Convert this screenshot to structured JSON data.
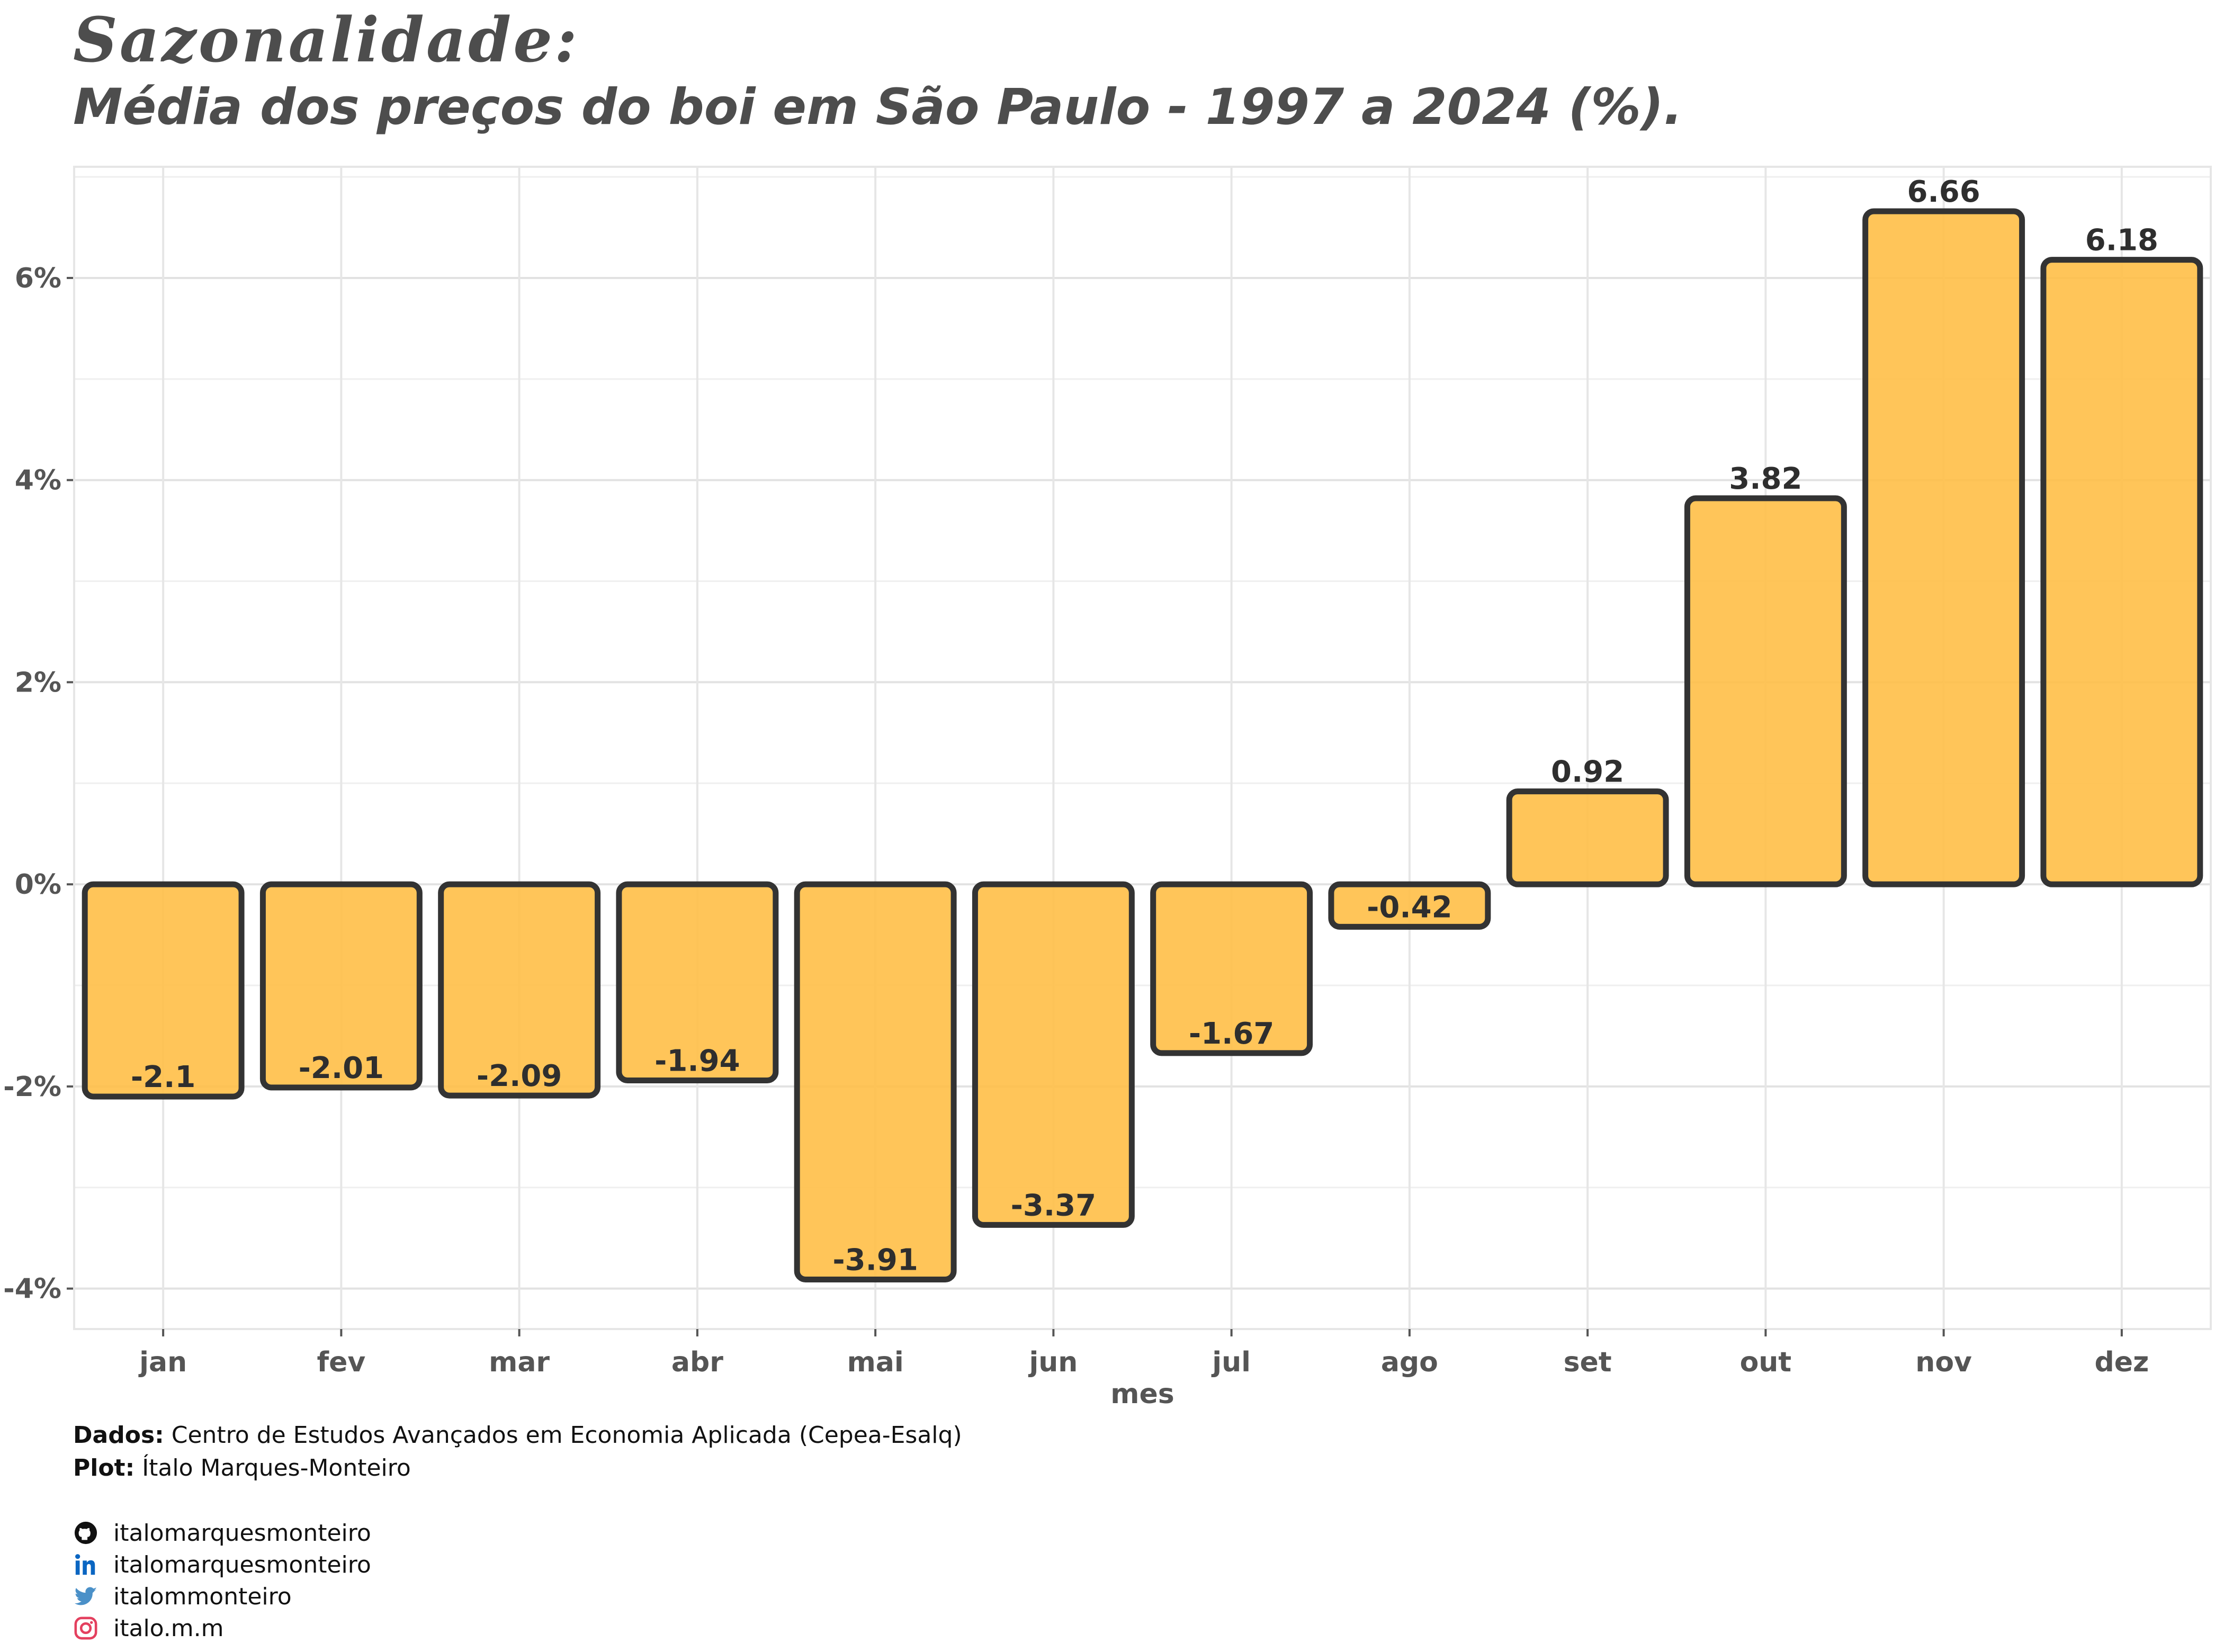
{
  "title": "Sazonalidade:",
  "subtitle": "Média dos preços do boi em São Paulo - 1997 a 2024 (%).",
  "chart_data": {
    "type": "bar",
    "categories": [
      "jan",
      "fev",
      "mar",
      "abr",
      "mai",
      "jun",
      "jul",
      "ago",
      "set",
      "out",
      "nov",
      "dez"
    ],
    "values": [
      -2.1,
      -2.01,
      -2.09,
      -1.94,
      -3.91,
      -3.37,
      -1.67,
      -0.42,
      0.92,
      3.82,
      6.66,
      6.18
    ],
    "value_labels": [
      "-2.1",
      "-2.01",
      "-2.09",
      "-1.94",
      "-3.91",
      "-3.37",
      "-1.67",
      "-0.42",
      "0.92",
      "3.82",
      "6.66",
      "6.18"
    ],
    "xlabel": "mes",
    "ylabel": "",
    "ylim": [
      -4.4,
      7.1
    ],
    "yticks": [
      -4,
      -2,
      0,
      2,
      4,
      6
    ],
    "ytick_labels": [
      "-4%",
      "-2%",
      "0%",
      "2%",
      "4%",
      "6%"
    ],
    "bar_color": "#ffbf47",
    "bar_edge_color": "#333333",
    "grid": true
  },
  "caption": {
    "source_label": "Dados:",
    "source_text": "Centro de Estudos Avançados em Economia Aplicada (Cepea-Esalq)",
    "plot_label": "Plot:",
    "plot_text": "Ítalo Marques-Monteiro"
  },
  "social": [
    {
      "icon": "github-icon",
      "handle": "italomarquesmonteiro",
      "color": "#111111"
    },
    {
      "icon": "linkedin-icon",
      "handle": "italomarquesmonteiro",
      "color": "#0a66c2"
    },
    {
      "icon": "twitter-icon",
      "handle": "italommonteiro",
      "color": "#4a90c8"
    },
    {
      "icon": "instagram-icon",
      "handle": "italo.m.m",
      "color": "#e4405f"
    }
  ]
}
